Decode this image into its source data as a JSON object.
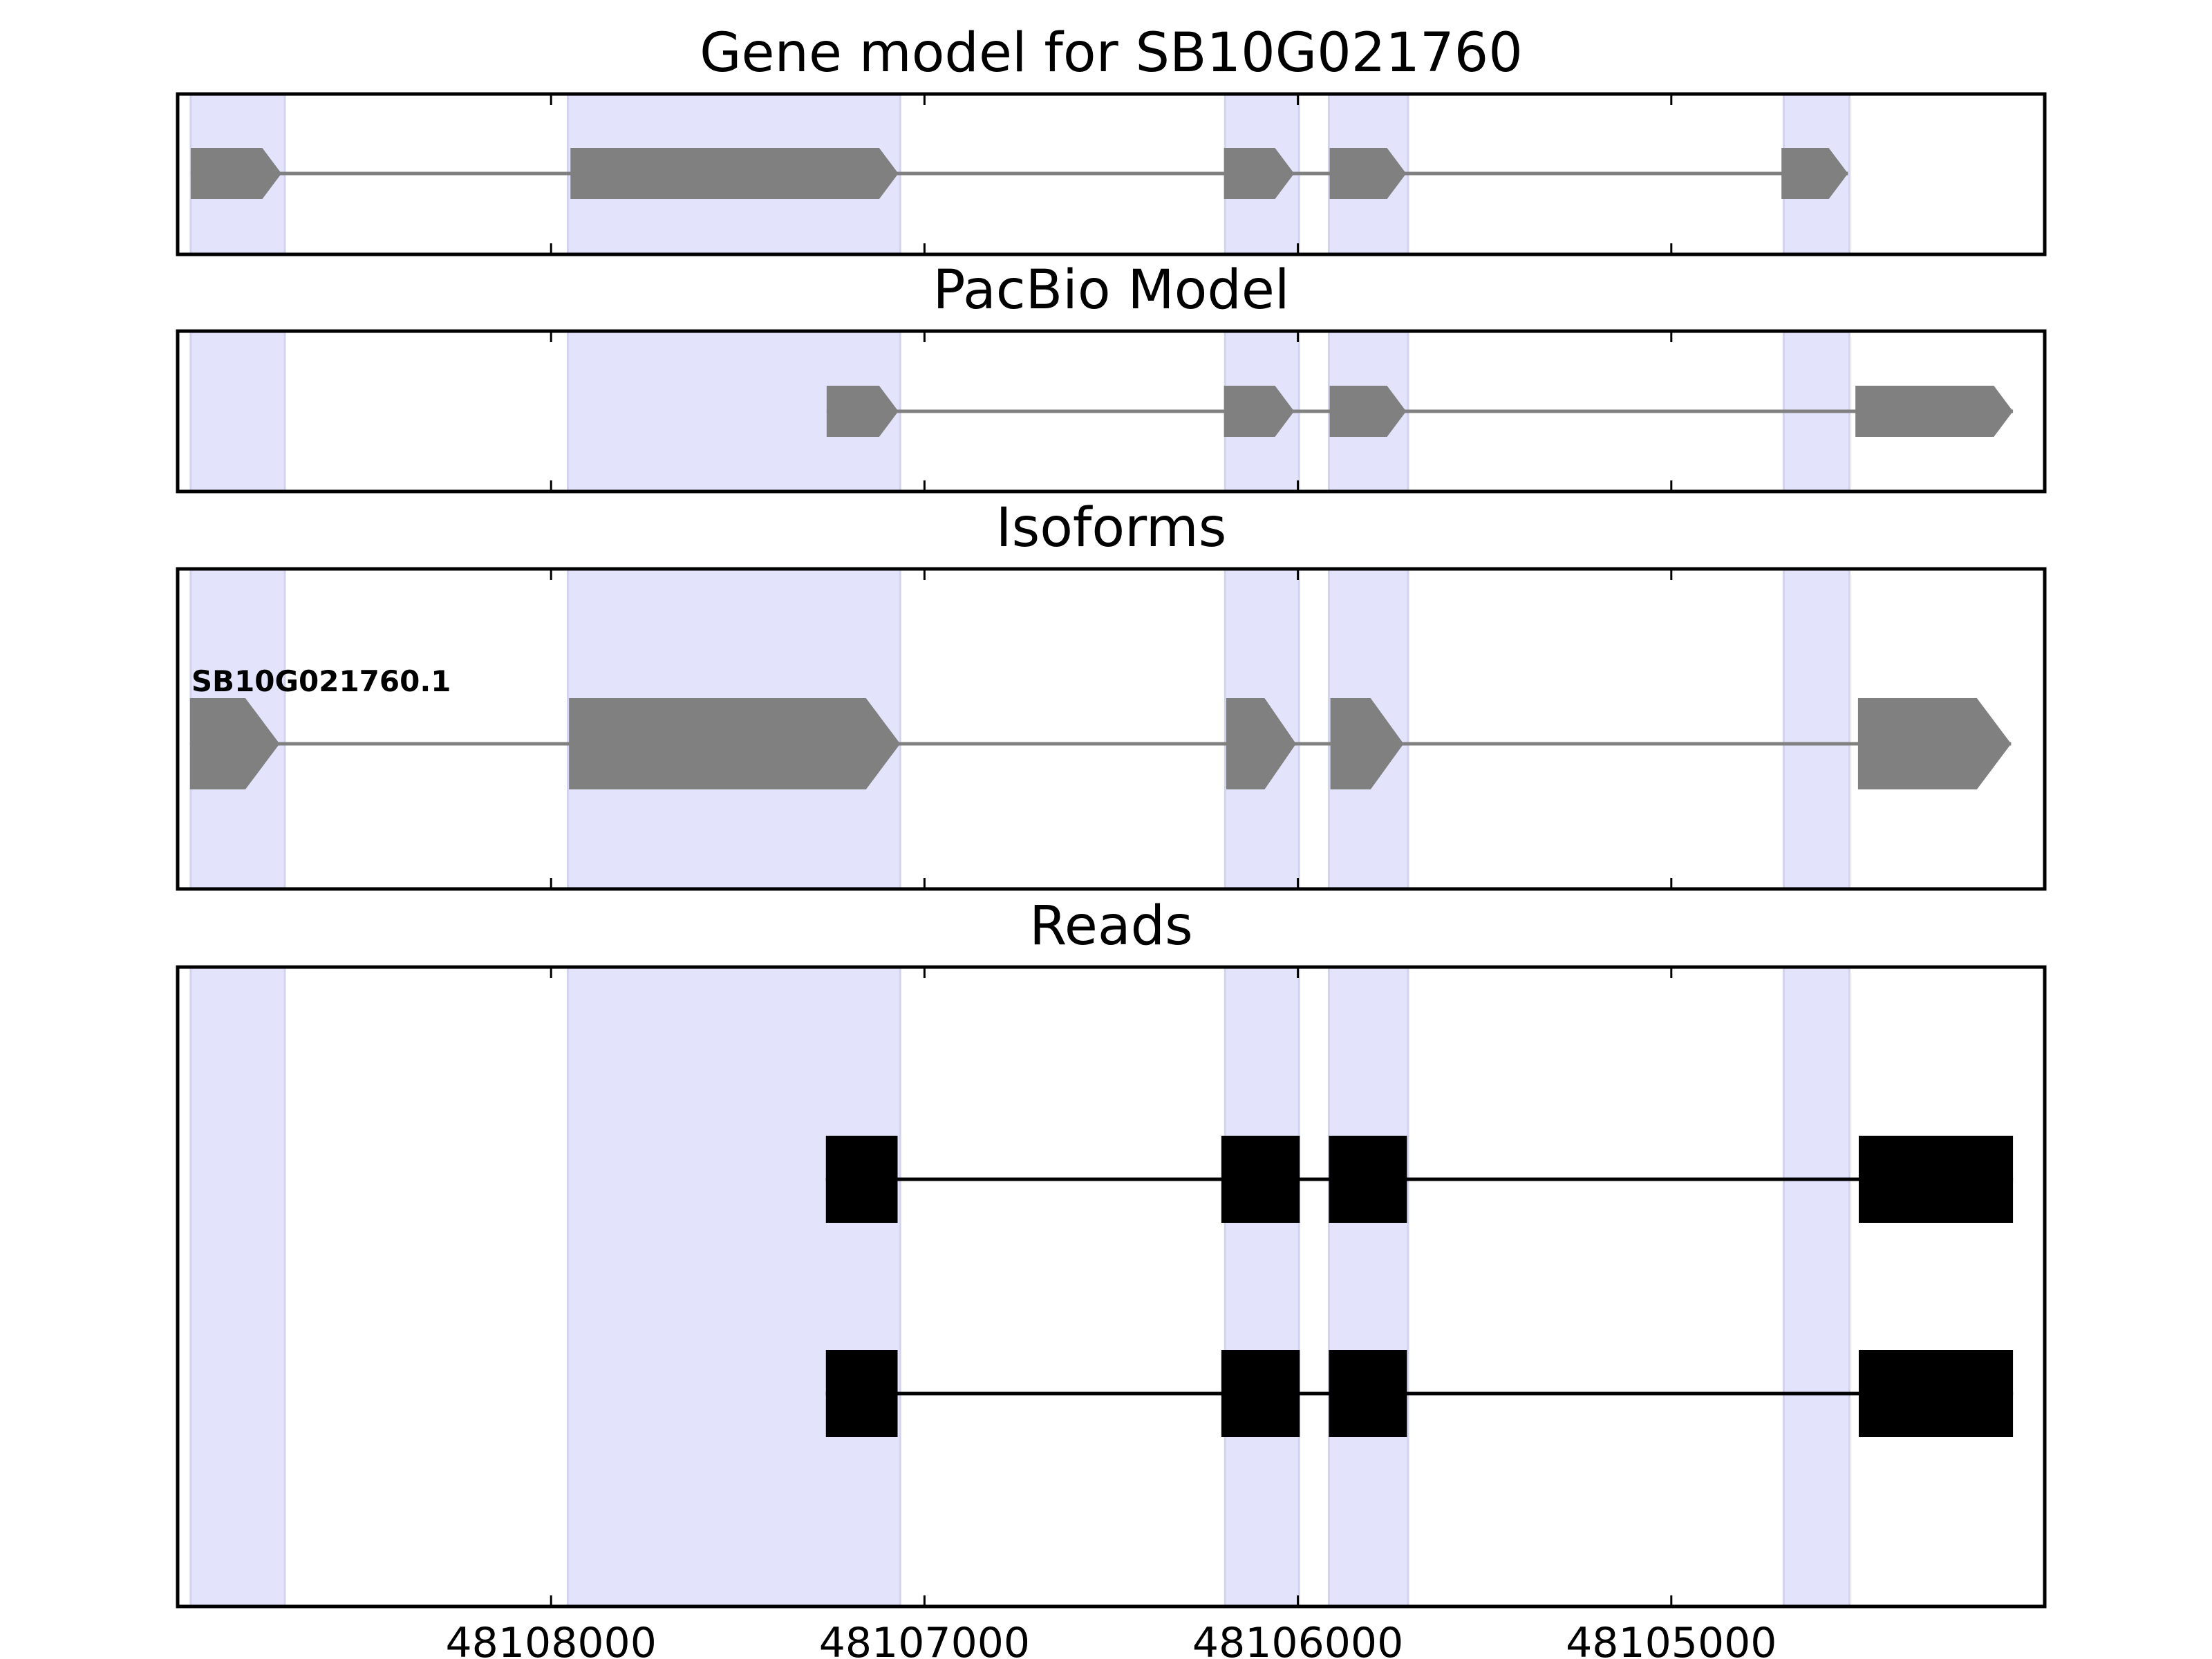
{
  "chart_data": {
    "type": "gene-track",
    "x_axis": {
      "direction": "reversed",
      "ticks": [
        48108000,
        48107000,
        48106000,
        48105000
      ],
      "tick_labels": [
        "48108000",
        "48107000",
        "48106000",
        "48105000"
      ],
      "xlim": [
        48109000,
        48104000
      ]
    },
    "reference_exons": [
      {
        "start": 48108713,
        "end": 48108965
      },
      {
        "start": 48107065,
        "end": 48107955
      },
      {
        "start": 48105997,
        "end": 48106195
      },
      {
        "start": 48105705,
        "end": 48105917
      },
      {
        "start": 48104523,
        "end": 48104699
      }
    ],
    "panels": [
      {
        "id": "gene-model",
        "title": "Gene model for SB10G021760",
        "track_color": "#808080",
        "tracks": [
          {
            "label": "",
            "exons": [
              [
                48108722,
                48108965
              ],
              [
                48107070,
                48107948
              ],
              [
                48106010,
                48106198
              ],
              [
                48105710,
                48105915
              ],
              [
                48104527,
                48104705
              ]
            ]
          }
        ]
      },
      {
        "id": "pacbio-model",
        "title": "PacBio Model",
        "track_color": "#808080",
        "tracks": [
          {
            "label": "",
            "exons": [
              [
                48107070,
                48107262
              ],
              [
                48106010,
                48106198
              ],
              [
                48105710,
                48105915
              ],
              [
                48104085,
                48104507
              ]
            ]
          }
        ]
      },
      {
        "id": "isoforms",
        "title": "Isoforms",
        "track_color": "#808080",
        "tracks": [
          {
            "label": "SB10G021760.1",
            "exons": [
              [
                48108727,
                48108967
              ],
              [
                48107065,
                48107952
              ],
              [
                48106005,
                48106192
              ],
              [
                48105717,
                48105913
              ],
              [
                48104090,
                48104500
              ]
            ]
          }
        ]
      },
      {
        "id": "reads",
        "title": "Reads",
        "track_color": "#000000",
        "tracks": [
          {
            "label": "",
            "exons": [
              [
                48107072,
                48107264
              ],
              [
                48105995,
                48106205
              ],
              [
                48105708,
                48105917
              ],
              [
                48104085,
                48104498
              ]
            ]
          },
          {
            "label": "",
            "exons": [
              [
                48107072,
                48107264
              ],
              [
                48105995,
                48106205
              ],
              [
                48105708,
                48105917
              ],
              [
                48104085,
                48104498
              ]
            ]
          }
        ]
      }
    ]
  }
}
